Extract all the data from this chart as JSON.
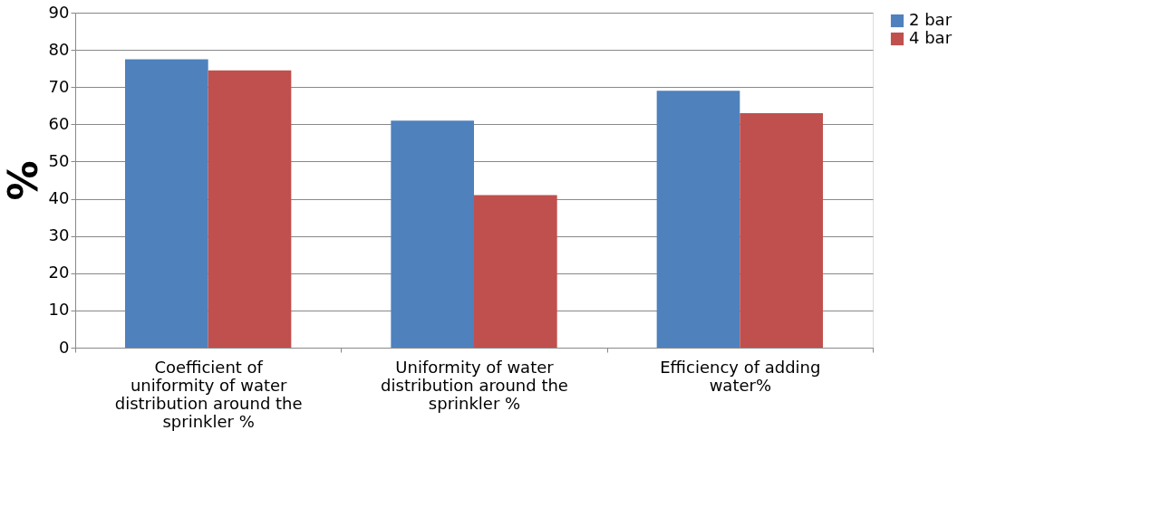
{
  "chart_data": {
    "type": "bar",
    "ylabel": "%",
    "categories": [
      "Coefficient of uniformity of water distribution around the sprinkler %",
      "Uniformity of water distribution around the sprinkler %",
      "Efficiency of adding water%"
    ],
    "series": [
      {
        "name": "2 bar",
        "color": "#4f81bd",
        "values": [
          77.5,
          61,
          69
        ]
      },
      {
        "name": "4 bar",
        "color": "#c0504d",
        "values": [
          74.5,
          41,
          63
        ]
      }
    ],
    "ylim": [
      0,
      90
    ],
    "yticks": [
      0,
      10,
      20,
      30,
      40,
      50,
      60,
      70,
      80,
      90
    ],
    "grid": "y",
    "legend": "right"
  }
}
